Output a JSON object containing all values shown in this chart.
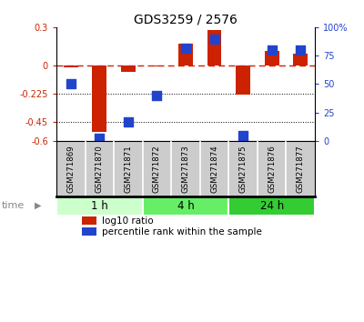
{
  "title": "GDS3259 / 2576",
  "samples": [
    "GSM271869",
    "GSM271870",
    "GSM271871",
    "GSM271872",
    "GSM271873",
    "GSM271874",
    "GSM271875",
    "GSM271876",
    "GSM271877"
  ],
  "log10_ratio": [
    -0.02,
    -0.53,
    -0.055,
    -0.01,
    0.17,
    0.28,
    -0.23,
    0.11,
    0.09
  ],
  "percentile_rank": [
    50,
    2,
    17,
    40,
    82,
    90,
    5,
    80,
    80
  ],
  "ylim_left": [
    -0.6,
    0.3
  ],
  "ylim_right": [
    0,
    100
  ],
  "yticks_left": [
    0.3,
    0,
    -0.225,
    -0.45,
    -0.6
  ],
  "yticks_right": [
    100,
    75,
    50,
    25,
    0
  ],
  "ytick_labels_left": [
    "0.3",
    "0",
    "-0.225",
    "-0.45",
    "-0.6"
  ],
  "ytick_labels_right": [
    "100%",
    "75",
    "50",
    "25",
    "0"
  ],
  "hlines": [
    -0.225,
    -0.45
  ],
  "bar_color_red": "#cc2200",
  "bar_color_blue": "#2244cc",
  "time_groups": [
    {
      "label": "1 h",
      "start": 0,
      "end": 3,
      "color": "#ccffcc"
    },
    {
      "label": "4 h",
      "start": 3,
      "end": 6,
      "color": "#66ee66"
    },
    {
      "label": "24 h",
      "start": 6,
      "end": 9,
      "color": "#33cc33"
    }
  ],
  "time_label": "time",
  "legend_red": "log10 ratio",
  "legend_blue": "percentile rank within the sample",
  "bar_width": 0.5,
  "dot_size": 45,
  "background_color": "#ffffff",
  "label_bg": "#cccccc",
  "label_divider": "#ffffff"
}
